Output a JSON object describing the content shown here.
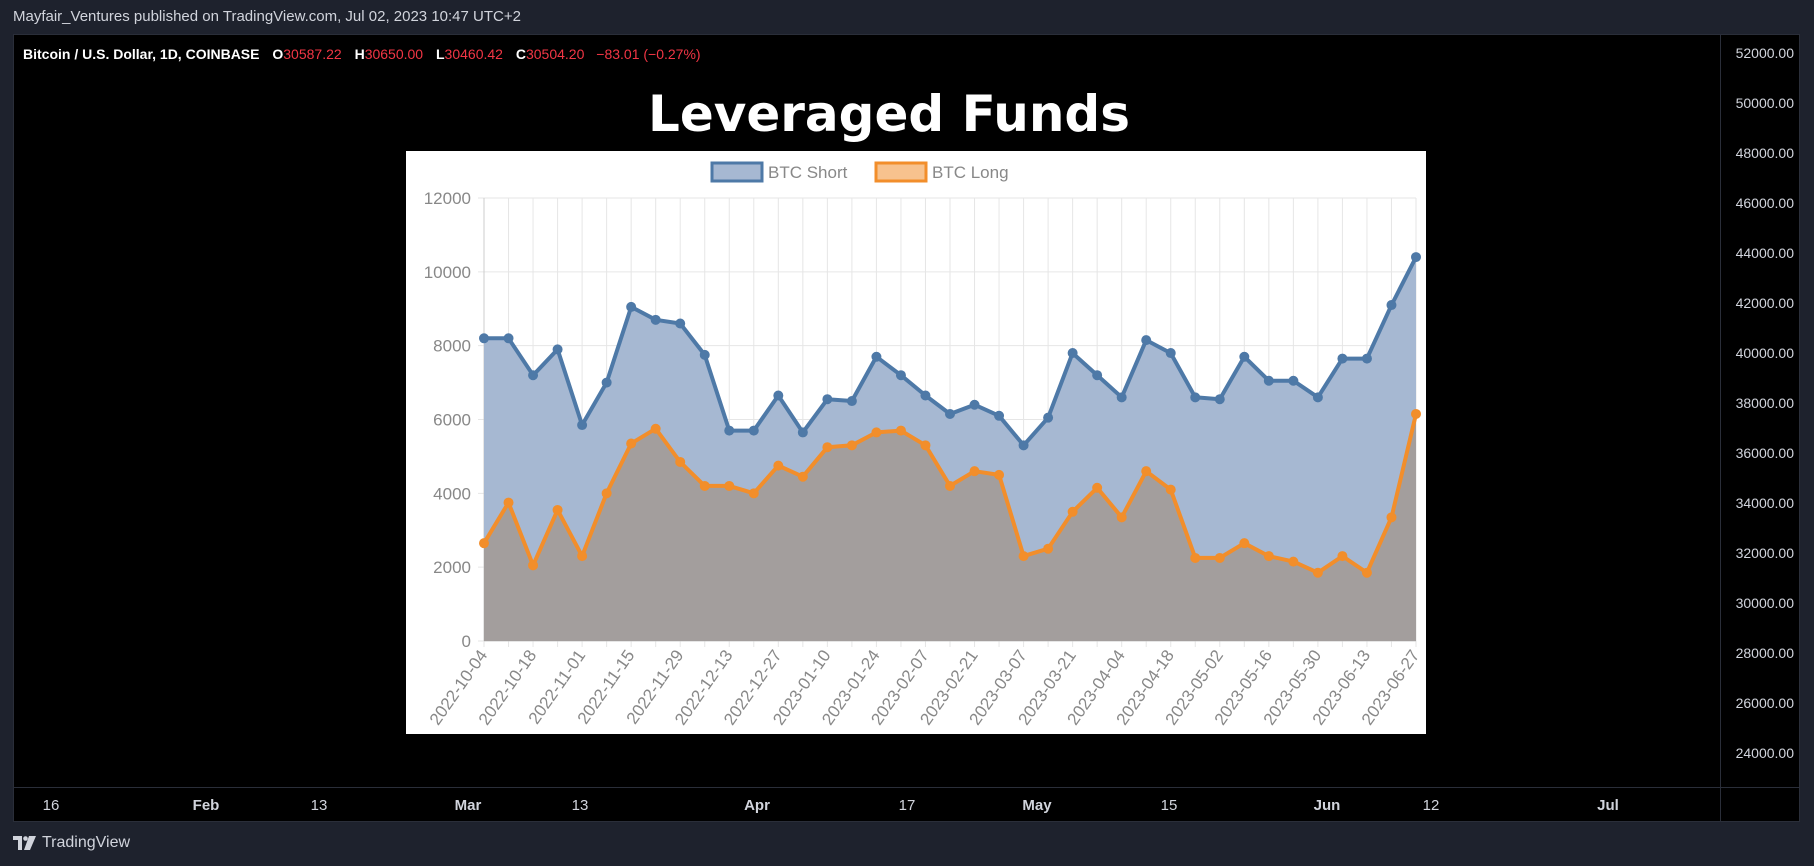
{
  "header": {
    "published_text": "Mayfair_Ventures published on TradingView.com, Jul 02, 2023 10:47 UTC+2"
  },
  "symbol": {
    "name": "Bitcoin / U.S. Dollar, 1D, COINBASE",
    "open_label": "O",
    "open": "30587.22",
    "high_label": "H",
    "high": "30650.00",
    "low_label": "L",
    "low": "30460.42",
    "close_label": "C",
    "close": "30504.20",
    "change": "−83.01 (−0.27%)"
  },
  "price_axis": {
    "ticks": [
      "52000.00",
      "50000.00",
      "48000.00",
      "46000.00",
      "44000.00",
      "42000.00",
      "40000.00",
      "38000.00",
      "36000.00",
      "34000.00",
      "32000.00",
      "30000.00",
      "28000.00",
      "26000.00",
      "24000.00"
    ]
  },
  "time_axis": {
    "ticks": [
      {
        "label": "16",
        "bold": false
      },
      {
        "label": "Feb",
        "bold": true
      },
      {
        "label": "13",
        "bold": false
      },
      {
        "label": "Mar",
        "bold": true
      },
      {
        "label": "13",
        "bold": false
      },
      {
        "label": "Apr",
        "bold": true
      },
      {
        "label": "17",
        "bold": false
      },
      {
        "label": "May",
        "bold": true
      },
      {
        "label": "15",
        "bold": false
      },
      {
        "label": "Jun",
        "bold": true
      },
      {
        "label": "12",
        "bold": false
      },
      {
        "label": "Jul",
        "bold": true
      }
    ]
  },
  "overlay": {
    "title": "Leveraged Funds"
  },
  "footer": {
    "brand": "TradingView"
  },
  "colors": {
    "short_line": "#4e79a7",
    "short_fill": "#a6b8d2",
    "long_line": "#f28e2b",
    "long_fill": "#a39e9d",
    "price_red": "#f23645"
  },
  "chart_data": {
    "type": "area",
    "title": "Leveraged Funds",
    "legend_placement": "top-center",
    "grid": true,
    "ylim": [
      0,
      12000
    ],
    "yticks": [
      0,
      2000,
      4000,
      6000,
      8000,
      10000,
      12000
    ],
    "x_tick_labels": [
      "2022-10-04",
      "2022-10-18",
      "2022-11-01",
      "2022-11-15",
      "2022-11-29",
      "2022-12-13",
      "2022-12-27",
      "2023-01-10",
      "2023-01-24",
      "2023-02-07",
      "2023-02-21",
      "2023-03-07",
      "2023-03-21",
      "2023-04-04",
      "2023-04-18",
      "2023-05-02",
      "2023-05-16",
      "2023-05-30",
      "2023-06-13",
      "2023-06-27"
    ],
    "x": [
      "2022-10-04",
      "2022-10-11",
      "2022-10-18",
      "2022-10-25",
      "2022-11-01",
      "2022-11-08",
      "2022-11-15",
      "2022-11-22",
      "2022-11-29",
      "2022-12-06",
      "2022-12-13",
      "2022-12-20",
      "2022-12-27",
      "2023-01-03",
      "2023-01-10",
      "2023-01-17",
      "2023-01-24",
      "2023-01-31",
      "2023-02-07",
      "2023-02-14",
      "2023-02-21",
      "2023-02-28",
      "2023-03-07",
      "2023-03-14",
      "2023-03-21",
      "2023-03-28",
      "2023-04-04",
      "2023-04-11",
      "2023-04-18",
      "2023-04-25",
      "2023-05-02",
      "2023-05-09",
      "2023-05-16",
      "2023-05-23",
      "2023-05-30",
      "2023-06-06",
      "2023-06-13",
      "2023-06-20",
      "2023-06-27"
    ],
    "series": [
      {
        "name": "BTC Short",
        "values": [
          8200,
          8200,
          7200,
          7900,
          5850,
          7000,
          9050,
          8700,
          8600,
          7750,
          5700,
          5700,
          6650,
          5650,
          6550,
          6500,
          7700,
          7200,
          6650,
          6150,
          6400,
          6100,
          5300,
          6050,
          7800,
          7200,
          6600,
          8150,
          7800,
          6600,
          6550,
          7700,
          7050,
          7050,
          6600,
          7650,
          7650,
          9100,
          10400
        ]
      },
      {
        "name": "BTC Long",
        "values": [
          2650,
          3750,
          2050,
          3550,
          2300,
          4000,
          5350,
          5750,
          4850,
          4200,
          4200,
          4000,
          4750,
          4450,
          5250,
          5300,
          5650,
          5700,
          5300,
          4200,
          4600,
          4500,
          2300,
          2500,
          3500,
          4150,
          3350,
          4600,
          4100,
          2250,
          2250,
          2650,
          2300,
          2150,
          1850,
          2300,
          1850,
          3350,
          6150
        ]
      }
    ]
  }
}
